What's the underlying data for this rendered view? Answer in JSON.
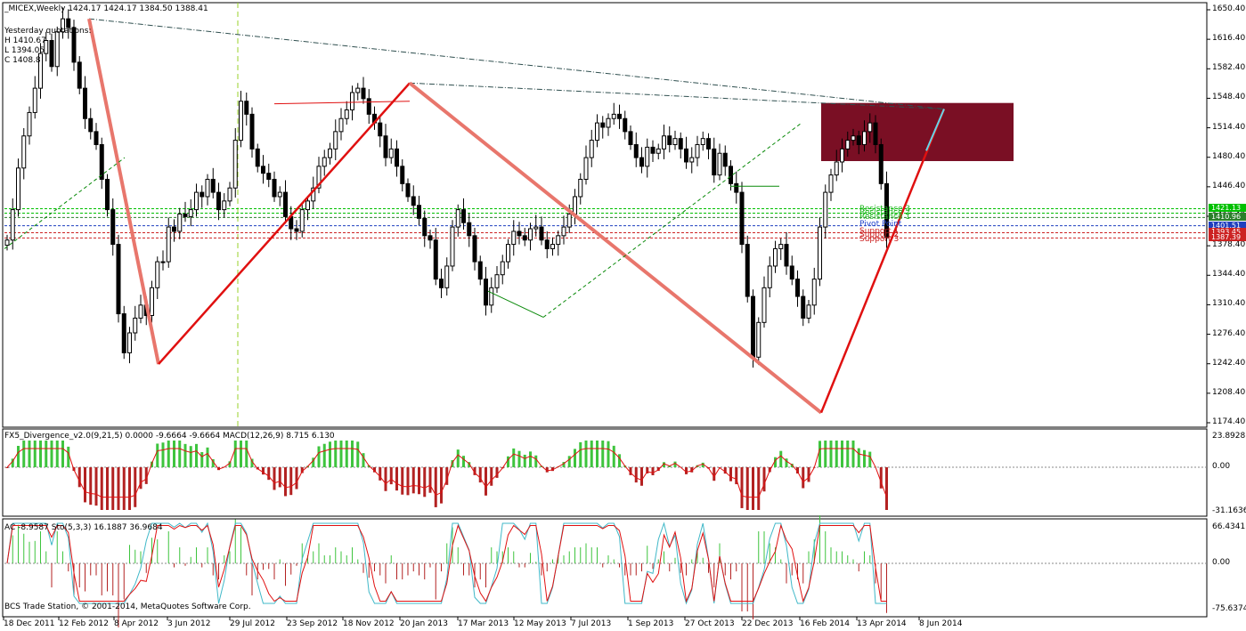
{
  "main": {
    "header": "_MICEX,Weekly  1424.17 1424.17 1384.50 1388.41",
    "yesterday": {
      "title": "Yesterday quotations:",
      "h": "H 1410.67",
      "l": "L 1394.05",
      "c": "C 1408.8"
    },
    "price_levels": [
      "1650.40",
      "1616.40",
      "1582.40",
      "1548.40",
      "1514.40",
      "1480.40",
      "1446.40",
      "1412.40",
      "1378.40",
      "1344.40",
      "1310.40",
      "1276.40",
      "1242.40",
      "1208.40",
      "1174.40"
    ],
    "tags": [
      {
        "label": "1421.13",
        "color": "#00c000"
      },
      {
        "label": "1410.96",
        "color": "#2a7f2a"
      },
      {
        "label": "1401.51",
        "color": "#1f3fbf"
      },
      {
        "label": "1393.45",
        "color": "#cc2222"
      },
      {
        "label": "1387.39",
        "color": "#cc2222"
      }
    ],
    "pivot_labels": [
      {
        "label": "Resistance 3",
        "color": "#22b822"
      },
      {
        "label": "Resistance 2",
        "color": "#22b822"
      },
      {
        "label": "Resistance 1",
        "color": "#22b822"
      },
      {
        "label": "Pivot Point",
        "color": "#2244cc"
      },
      {
        "label": "Support 1",
        "color": "#cc2222"
      },
      {
        "label": "Support 2",
        "color": "#cc2222"
      },
      {
        "label": "Support 3",
        "color": "#cc2222"
      }
    ]
  },
  "macd": {
    "header": "FX5_Divergence_v2.0(9,21,5) 0.0000 -9.6664 -9.6664  MACD(12,26,9) 8.715 6.130",
    "levels": [
      "23.8928",
      "0.00",
      "-31.1636"
    ]
  },
  "stoch": {
    "header": "AC -8.9587  Sto(5,3,3) 16.1887 36.9684",
    "levels": [
      "66.4341",
      "0.00",
      "-75.6374"
    ],
    "footer": "BCS Trade Station, © 2001-2014, MetaQuotes Software Corp."
  },
  "dates": [
    "18 Dec 2011",
    "12 Feb 2012",
    "8 Apr 2012",
    "3 Jun 2012",
    "29 Jul 2012",
    "23 Sep 2012",
    "18 Nov 2012",
    "20 Jan 2013",
    "17 Mar 2013",
    "12 May 2013",
    "7 Jul 2013",
    "1 Sep 2013",
    "27 Oct 2013",
    "22 Dec 2013",
    "16 Feb 2014",
    "13 Apr 2014",
    "8 Jun 2014"
  ],
  "chart_data": {
    "type": "candlestick",
    "symbol": "_MICEX",
    "timeframe": "Weekly",
    "ylim": [
      1174.4,
      1650.4
    ],
    "yticks": [
      1650.4,
      1616.4,
      1582.4,
      1548.4,
      1514.4,
      1480.4,
      1446.4,
      1412.4,
      1378.4,
      1344.4,
      1310.4,
      1276.4,
      1242.4,
      1208.4,
      1174.4
    ],
    "closes": [
      1385,
      1420,
      1468,
      1505,
      1532,
      1560,
      1600,
      1615,
      1585,
      1625,
      1640,
      1630,
      1590,
      1560,
      1525,
      1510,
      1495,
      1455,
      1420,
      1380,
      1300,
      1255,
      1278,
      1295,
      1310,
      1298,
      1330,
      1360,
      1360,
      1400,
      1395,
      1415,
      1412,
      1420,
      1440,
      1435,
      1455,
      1440,
      1420,
      1430,
      1445,
      1500,
      1545,
      1530,
      1490,
      1470,
      1462,
      1455,
      1435,
      1440,
      1412,
      1398,
      1395,
      1420,
      1430,
      1445,
      1470,
      1480,
      1490,
      1510,
      1525,
      1535,
      1555,
      1560,
      1548,
      1530,
      1520,
      1505,
      1480,
      1490,
      1470,
      1450,
      1435,
      1425,
      1410,
      1390,
      1385,
      1340,
      1330,
      1355,
      1400,
      1420,
      1405,
      1390,
      1360,
      1340,
      1310,
      1330,
      1345,
      1360,
      1380,
      1395,
      1390,
      1385,
      1398,
      1400,
      1385,
      1375,
      1380,
      1390,
      1400,
      1415,
      1435,
      1455,
      1480,
      1500,
      1520,
      1515,
      1525,
      1530,
      1525,
      1510,
      1495,
      1480,
      1470,
      1492,
      1485,
      1490,
      1505,
      1495,
      1502,
      1490,
      1475,
      1480,
      1495,
      1502,
      1490,
      1460,
      1485,
      1470,
      1450,
      1440,
      1380,
      1320,
      1250,
      1290,
      1330,
      1355,
      1375,
      1380,
      1355,
      1340,
      1320,
      1295,
      1310,
      1340,
      1400,
      1440,
      1460,
      1475,
      1490,
      1500,
      1505,
      1495,
      1510,
      1520,
      1495,
      1450,
      1388
    ]
  },
  "annotations": {
    "zone_color": "#7a0f24",
    "zigzag_color": "#e8766c"
  }
}
